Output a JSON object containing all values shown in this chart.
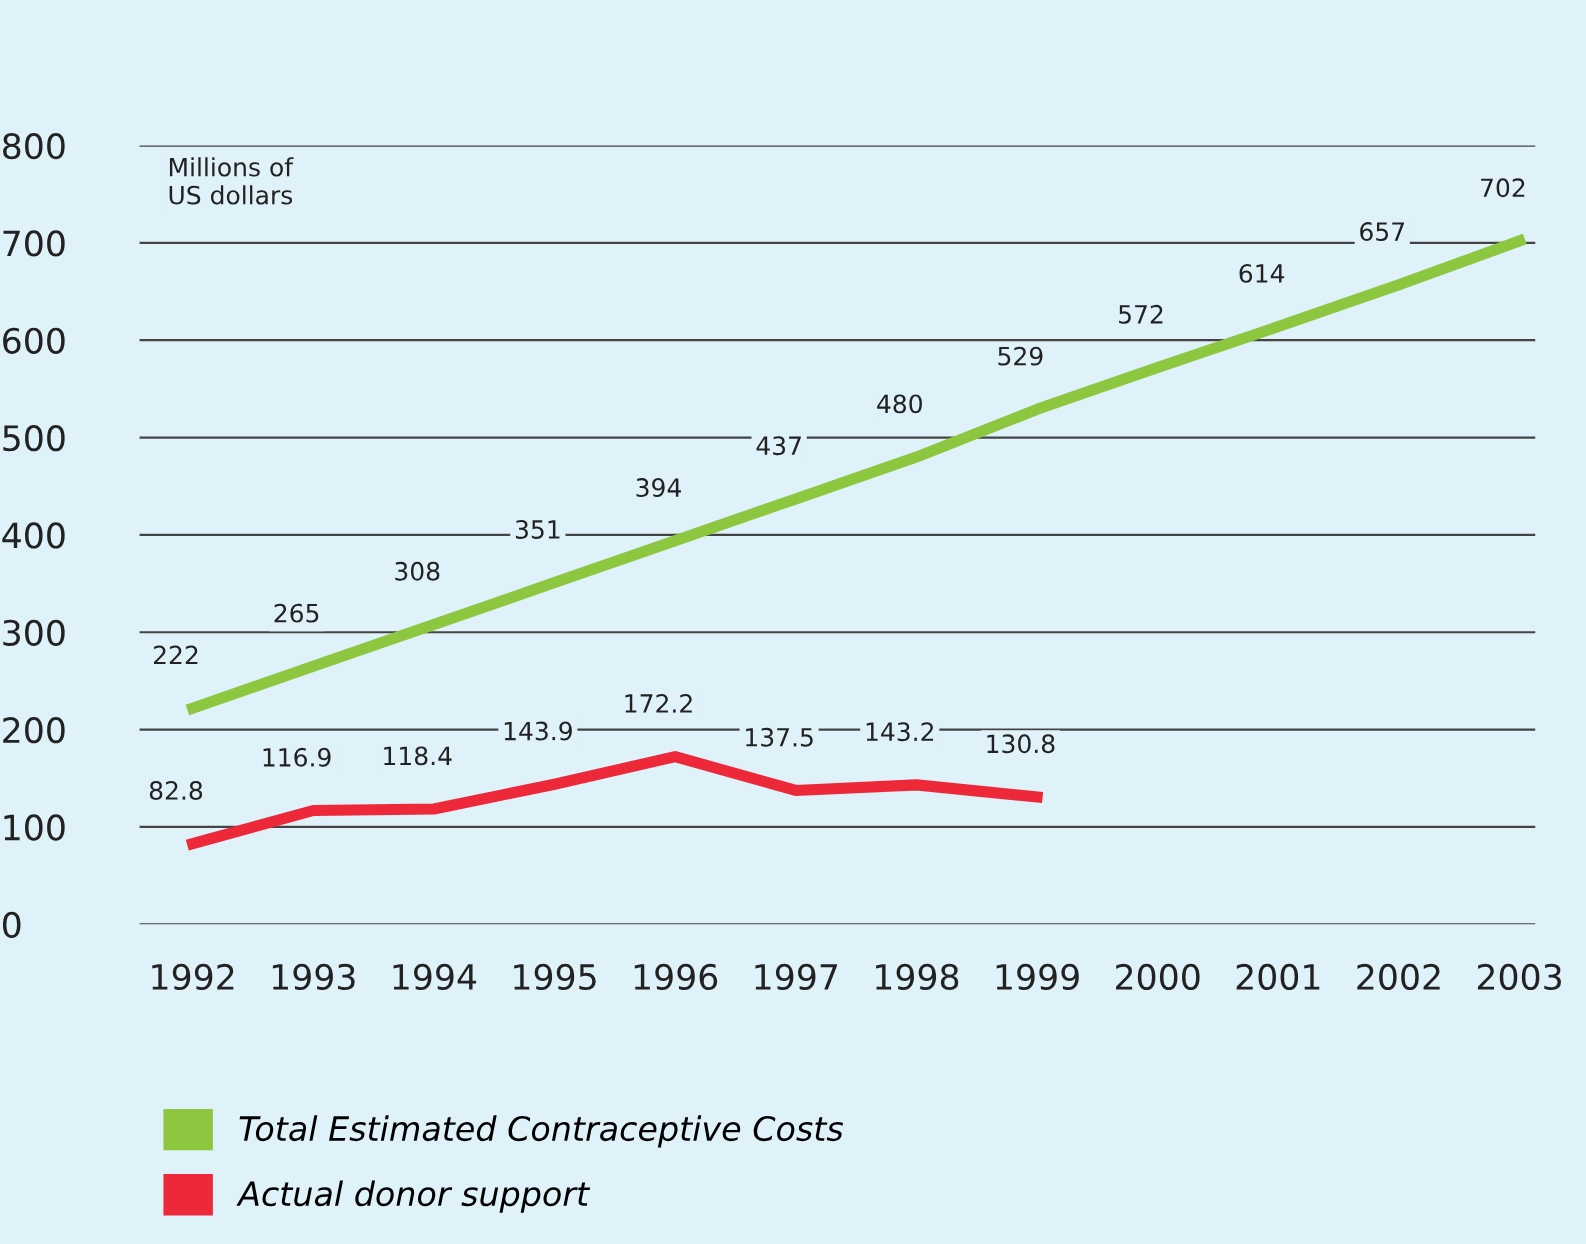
{
  "chart_data": {
    "type": "line",
    "ylabel": "Millions of\nUS dollars",
    "x": [
      1992,
      1993,
      1994,
      1995,
      1996,
      1997,
      1998,
      1999,
      2000,
      2001,
      2002,
      2003
    ],
    "series": [
      {
        "name": "Total Estimated Contraceptive Costs",
        "color": "#8dc63f",
        "values": [
          222,
          265,
          308,
          351,
          394,
          437,
          480,
          529,
          572,
          614,
          657,
          702
        ]
      },
      {
        "name": "Actual donor support",
        "color": "#ed2939",
        "values": [
          82.8,
          116.9,
          118.4,
          143.9,
          172.2,
          137.5,
          143.2,
          130.8,
          null,
          null,
          null,
          null
        ]
      }
    ],
    "xlim": [
      1991.56,
      2003.13
    ],
    "ylim": [
      0,
      800
    ],
    "xticks": [
      1992,
      1993,
      1994,
      1995,
      1996,
      1997,
      1998,
      1999,
      2000,
      2001,
      2002,
      2003
    ],
    "yticks": [
      0,
      100,
      200,
      300,
      400,
      500,
      600,
      700,
      800
    ],
    "grid": "y",
    "legend": "bottom",
    "data_labels": true,
    "marker": "none",
    "line_style": "solid"
  }
}
